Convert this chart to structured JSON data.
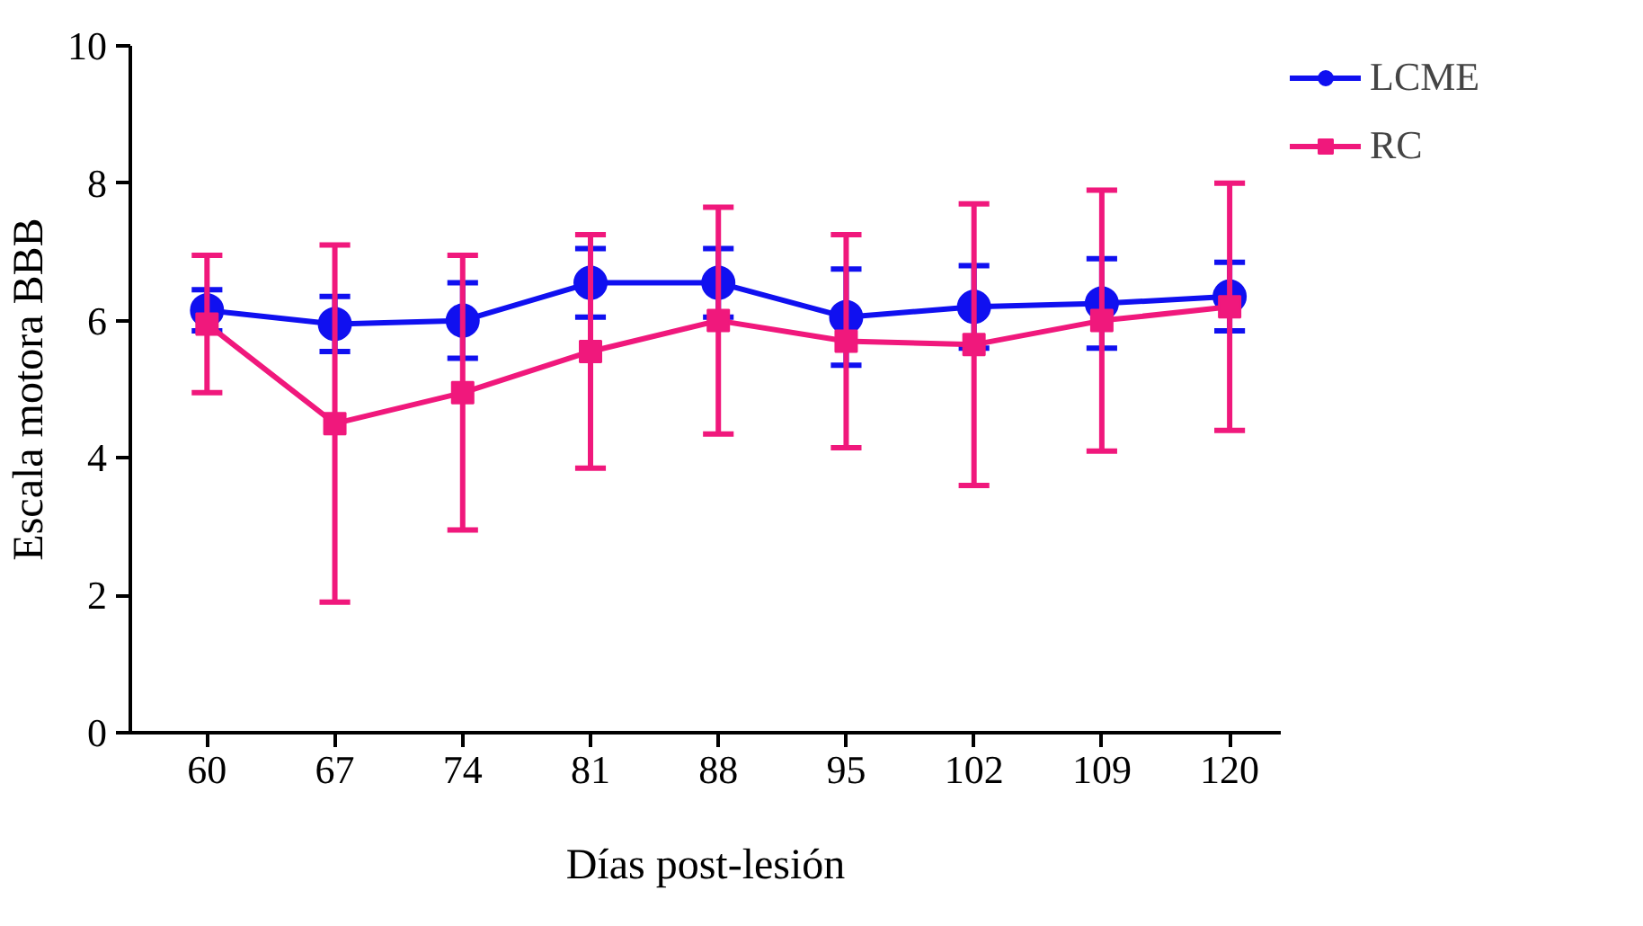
{
  "chart_data": {
    "type": "line",
    "xlabel": "Días post-lesión",
    "ylabel": "Escala motora BBB",
    "categories": [
      "60",
      "67",
      "74",
      "81",
      "88",
      "95",
      "102",
      "109",
      "120"
    ],
    "ylim": [
      0,
      10
    ],
    "yticks": [
      0,
      2,
      4,
      6,
      8,
      10
    ],
    "grid": false,
    "legend": "top right",
    "line_style": "solid",
    "series": [
      {
        "name": "LCME",
        "color": "#1010f0",
        "marker": "circle",
        "values": [
          6.15,
          5.95,
          6.0,
          6.55,
          6.55,
          6.05,
          6.2,
          6.25,
          6.35
        ],
        "errors": [
          0.3,
          0.4,
          0.55,
          0.5,
          0.5,
          0.7,
          0.6,
          0.65,
          0.5
        ]
      },
      {
        "name": "RC",
        "color": "#f0187c",
        "marker": "square",
        "values": [
          5.95,
          4.5,
          4.95,
          5.55,
          6.0,
          5.7,
          5.65,
          6.0,
          6.2
        ],
        "errors": [
          1.0,
          2.6,
          2.0,
          1.7,
          1.65,
          1.55,
          2.05,
          1.9,
          1.8
        ]
      }
    ]
  }
}
